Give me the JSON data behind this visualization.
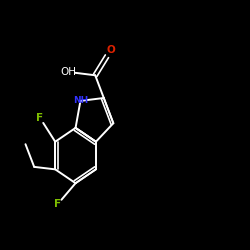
{
  "background_color": "#000000",
  "bond_color": "#ffffff",
  "atom_colors": {
    "F": "#7fbf00",
    "NH": "#3333ff",
    "OH": "#ffffff",
    "O": "#dd2200"
  },
  "figsize": [
    2.5,
    2.5
  ],
  "dpi": 100
}
